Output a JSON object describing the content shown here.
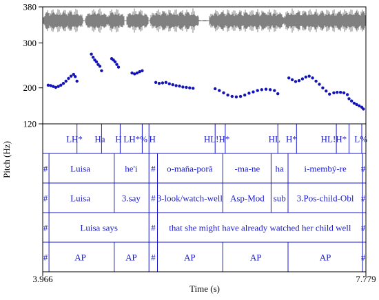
{
  "chart_data": {
    "type": "scatter",
    "title": "",
    "ylabel": "Pitch (Hz)",
    "xlabel": "Time (s)",
    "xlim": [
      3.966,
      7.779
    ],
    "ylim": [
      120,
      380
    ],
    "x_tick_labels": [
      "3.966",
      "7.779"
    ],
    "y_ticks": [
      {
        "value": 380,
        "label": "380"
      },
      {
        "value": 300,
        "label": "300"
      },
      {
        "value": 200,
        "label": "200"
      },
      {
        "value": 120,
        "label": "120"
      }
    ],
    "colors": {
      "pitch": "#1414b4",
      "waveform": "#808080",
      "tiers": "#1a1acc"
    },
    "pitch_series": [
      {
        "name": "",
        "x": [
          4.03,
          4.06,
          4.09,
          4.12,
          4.15,
          4.18,
          4.21,
          4.24,
          4.27,
          4.3,
          4.33,
          4.35,
          4.37
        ],
        "y": [
          206,
          205,
          203,
          201,
          203,
          206,
          210,
          215,
          221,
          226,
          230,
          225,
          215
        ]
      },
      {
        "name": "",
        "x": [
          4.54,
          4.56,
          4.58,
          4.6,
          4.62,
          4.64,
          4.66
        ],
        "y": [
          275,
          268,
          262,
          258,
          252,
          248,
          238
        ]
      },
      {
        "name": "",
        "x": [
          4.78,
          4.8,
          4.82,
          4.84,
          4.86
        ],
        "y": [
          265,
          262,
          258,
          252,
          246
        ]
      },
      {
        "name": "",
        "x": [
          5.02,
          5.05,
          5.08,
          5.11,
          5.14
        ],
        "y": [
          233,
          231,
          233,
          236,
          238
        ]
      },
      {
        "name": "",
        "x": [
          5.3,
          5.34,
          5.38,
          5.42,
          5.46,
          5.5,
          5.54,
          5.58,
          5.62,
          5.66,
          5.7,
          5.74
        ],
        "y": [
          212,
          210,
          211,
          212,
          209,
          207,
          205,
          204,
          202,
          201,
          200,
          199
        ]
      },
      {
        "name": "",
        "x": [
          6.0,
          6.05,
          6.1,
          6.15,
          6.2,
          6.25,
          6.3,
          6.35,
          6.4,
          6.45,
          6.5,
          6.55,
          6.6,
          6.65,
          6.7,
          6.74
        ],
        "y": [
          198,
          194,
          189,
          184,
          181,
          180,
          181,
          184,
          188,
          191,
          194,
          196,
          197,
          196,
          194,
          187
        ]
      },
      {
        "name": "",
        "x": [
          6.87,
          6.91,
          6.95,
          6.99,
          7.03,
          7.07,
          7.11,
          7.15,
          7.19,
          7.23,
          7.27,
          7.31,
          7.35
        ],
        "y": [
          222,
          218,
          214,
          216,
          220,
          224,
          226,
          222,
          215,
          208,
          200,
          193,
          186
        ]
      },
      {
        "name": "",
        "x": [
          7.4,
          7.44,
          7.48,
          7.52,
          7.56
        ],
        "y": [
          189,
          190,
          190,
          189,
          185
        ]
      },
      {
        "name": "",
        "x": [
          7.58,
          7.61,
          7.64,
          7.67,
          7.7,
          7.73,
          7.75
        ],
        "y": [
          176,
          171,
          166,
          163,
          160,
          157,
          153
        ]
      }
    ]
  },
  "tiers": [
    {
      "name": "tones",
      "boundaries": [
        4.37,
        4.66,
        4.88,
        5.14,
        5.22,
        6.0,
        6.12,
        6.74,
        6.96,
        7.43,
        7.58,
        7.73
      ],
      "labels": [
        {
          "t": 4.34,
          "text": "LH*"
        },
        {
          "t": 4.64,
          "text": "Ha"
        },
        {
          "t": 4.86,
          "text": "H"
        },
        {
          "t": 5.06,
          "text": "LH*%"
        },
        {
          "t": 5.26,
          "text": "H"
        },
        {
          "t": 6.02,
          "text": "HL!H*"
        },
        {
          "t": 6.7,
          "text": "HL"
        },
        {
          "t": 6.9,
          "text": "H*"
        },
        {
          "t": 7.4,
          "text": "HL!H*"
        },
        {
          "t": 7.72,
          "text": "L%"
        }
      ]
    },
    {
      "name": "words",
      "boundaries": [
        4.04,
        4.81,
        5.22,
        5.32,
        6.09,
        6.66,
        6.86,
        7.74
      ],
      "labels": [
        {
          "t": 3.99,
          "text": "#"
        },
        {
          "t": 4.41,
          "text": "Luisa"
        },
        {
          "t": 5.01,
          "text": "he'i"
        },
        {
          "t": 5.27,
          "text": "#"
        },
        {
          "t": 5.7,
          "text": "o-maña-porã"
        },
        {
          "t": 6.38,
          "text": "-ma-ne"
        },
        {
          "t": 6.76,
          "text": "ha"
        },
        {
          "t": 7.3,
          "text": "i-membý-re"
        },
        {
          "t": 7.77,
          "text": "#"
        }
      ]
    },
    {
      "name": "gloss",
      "boundaries": [
        4.04,
        4.81,
        5.22,
        5.32,
        6.09,
        6.66,
        6.86,
        7.74
      ],
      "labels": [
        {
          "t": 3.99,
          "text": "#"
        },
        {
          "t": 4.41,
          "text": "Luisa"
        },
        {
          "t": 5.01,
          "text": "3.say"
        },
        {
          "t": 5.27,
          "text": "#"
        },
        {
          "t": 5.7,
          "text": "3-look/watch-well"
        },
        {
          "t": 6.38,
          "text": "Asp-Mod"
        },
        {
          "t": 6.76,
          "text": "sub"
        },
        {
          "t": 7.3,
          "text": "3.Pos-child-Obl"
        },
        {
          "t": 7.77,
          "text": "#"
        }
      ]
    },
    {
      "name": "translation",
      "boundaries": [
        4.04,
        5.22,
        5.32,
        7.74
      ],
      "labels": [
        {
          "t": 3.99,
          "text": "#"
        },
        {
          "t": 4.63,
          "text": "Luisa says"
        },
        {
          "t": 5.27,
          "text": "#"
        },
        {
          "t": 6.53,
          "text": "that she might have already watched her child well"
        },
        {
          "t": 7.77,
          "text": "#"
        }
      ]
    },
    {
      "name": "phrases",
      "boundaries": [
        4.04,
        4.81,
        5.22,
        5.32,
        6.09,
        6.86,
        7.74
      ],
      "labels": [
        {
          "t": 3.99,
          "text": "#"
        },
        {
          "t": 4.41,
          "text": "AP"
        },
        {
          "t": 5.01,
          "text": "AP"
        },
        {
          "t": 5.27,
          "text": "#"
        },
        {
          "t": 5.7,
          "text": "AP"
        },
        {
          "t": 6.48,
          "text": "AP"
        },
        {
          "t": 7.3,
          "text": "AP"
        },
        {
          "t": 7.77,
          "text": "#"
        }
      ]
    }
  ]
}
